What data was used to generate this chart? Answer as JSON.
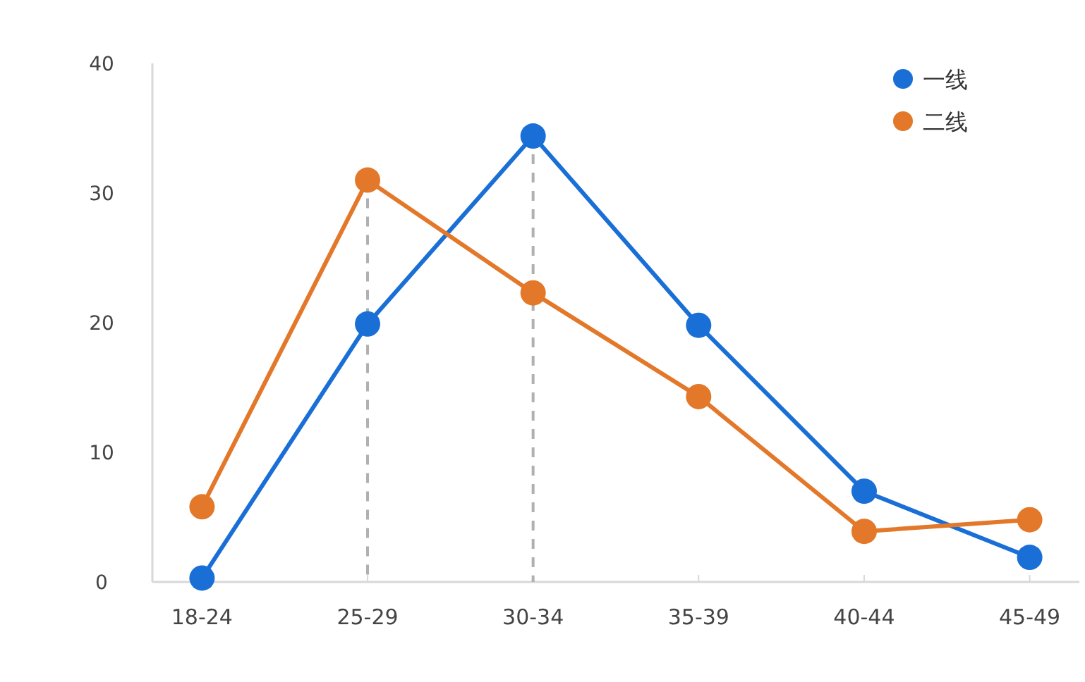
{
  "chart_data": {
    "type": "line",
    "categories": [
      "18-24",
      "25-29",
      "30-34",
      "35-39",
      "40-44",
      "45-49"
    ],
    "series": [
      {
        "name": "一线",
        "color": "#1a6fd6",
        "values": [
          0.3,
          19.9,
          34.4,
          19.8,
          7.0,
          1.9
        ]
      },
      {
        "name": "二线",
        "color": "#e3782a",
        "values": [
          5.8,
          31.0,
          22.3,
          14.3,
          3.9,
          4.8
        ]
      }
    ],
    "ylim": [
      0,
      40
    ],
    "yticks": [
      0,
      10,
      20,
      30,
      40
    ],
    "grid": false,
    "legend": "top right",
    "marker": "circle",
    "line_style": "solid",
    "ref_lines": [
      {
        "axis": "x",
        "value": "25-29",
        "color": "#b0b0b0",
        "line_style": "dashed"
      },
      {
        "axis": "x",
        "value": "30-34",
        "color": "#b0b0b0",
        "line_style": "dashed"
      }
    ]
  }
}
